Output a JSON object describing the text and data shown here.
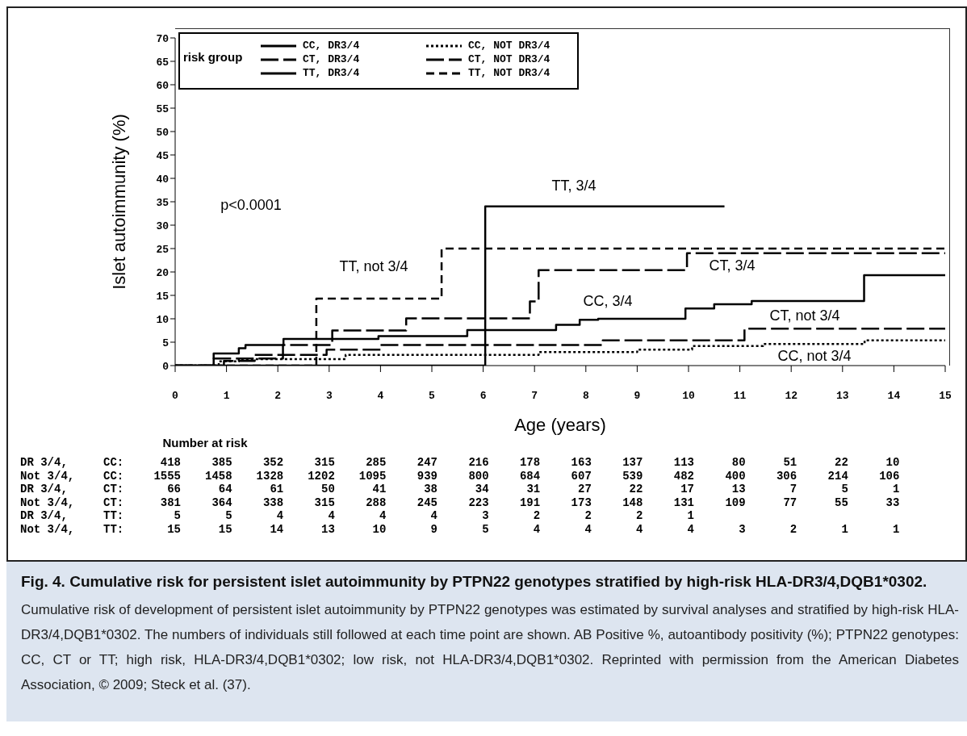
{
  "chart_data": {
    "type": "step",
    "title": "Fig. 4. Cumulative risk for persistent islet autoimmunity by PTPN22 genotypes stratified by high-risk HLA-DR3/4,DQB1*0302.",
    "xlabel": "Age (years)",
    "ylabel": "Islet autoimmunity (%)",
    "legend_title": "risk group",
    "legend": "top",
    "grid": false,
    "xlim": [
      0,
      15
    ],
    "xticks": [
      0,
      1,
      2,
      3,
      4,
      5,
      6,
      7,
      8,
      9,
      10,
      11,
      12,
      13,
      14,
      15
    ],
    "ylim": [
      0,
      70
    ],
    "yticks": [
      0,
      5,
      10,
      15,
      20,
      25,
      30,
      35,
      40,
      45,
      50,
      55,
      60,
      65,
      70
    ],
    "series": [
      {
        "name": "CC, DR3/4",
        "color": "#000000",
        "line_style": "solid",
        "x": [
          0,
          0.75,
          1.24,
          1.37,
          2.11,
          3.96,
          5.69,
          7.42,
          7.88,
          8.24,
          9.94,
          10.5,
          11.23,
          13.42,
          15
        ],
        "values": [
          0,
          2.6,
          3.7,
          4.4,
          5.7,
          6.3,
          7.6,
          8.7,
          9.8,
          10,
          12.2,
          13.1,
          13.8,
          19.3,
          19.3
        ]
      },
      {
        "name": "CT, DR3/4",
        "color": "#000000",
        "line_style": "dashed",
        "x": [
          0,
          0.75,
          2.1,
          3.06,
          4.5,
          6.91,
          7.08,
          9.97,
          15
        ],
        "values": [
          0,
          1.5,
          4.4,
          7.5,
          10.1,
          13.7,
          20.4,
          24,
          24
        ]
      },
      {
        "name": "TT, DR3/4",
        "color": "#000000",
        "line_style": "solid",
        "x": [
          0,
          6.04,
          10.7
        ],
        "values": [
          0,
          34,
          34
        ]
      },
      {
        "name": "CC, NOT DR3/4",
        "color": "#000000",
        "line_style": "dotted",
        "x": [
          0,
          0.85,
          1.24,
          3.32,
          7.08,
          9.0,
          10.07,
          11.45,
          13.43,
          15
        ],
        "values": [
          0,
          0.9,
          1.4,
          2.3,
          2.9,
          3.4,
          4.2,
          4.6,
          5.4,
          5.4
        ]
      },
      {
        "name": "CT, NOT DR3/4",
        "color": "#000000",
        "line_style": "dashed",
        "x": [
          0,
          0.95,
          1.55,
          2.95,
          4.0,
          8.33,
          11.09,
          15
        ],
        "values": [
          0,
          1.0,
          2.3,
          3.4,
          4.4,
          5.4,
          7.9,
          7.9
        ]
      },
      {
        "name": "TT, NOT DR3/4",
        "color": "#000000",
        "line_style": "dashed",
        "x": [
          0,
          2.75,
          5.19,
          15
        ],
        "values": [
          0,
          14.3,
          25,
          25
        ]
      }
    ],
    "annotations": [
      "p<0.0001",
      "TT, 3/4",
      "TT, not 3/4",
      "CT, 3/4",
      "CC, 3/4",
      "CT, not 3/4",
      "CC, not 3/4",
      "Number at risk",
      "DR 3/4, CC: 418 385 352 315 285 247 216 178 163 137 113 80 51 22 10",
      "Not 3/4, CC: 1555 1458 1328 1202 1095 939 800 684 607 539 482 400 306 214 106",
      "DR 3/4, CT: 66 64 61 50 41 38 34 31 27 22 17 13 7 5 1",
      "Not 3/4, CT: 381 364 338 315 288 245 223 191 173 148 131 109 77 55 33",
      "DR 3/4, TT: 5 5 4 4 4 4 3 2 2 2 1",
      "Not 3/4, TT: 15 15 14 13 10 9 5 4 4 4 4 3 2 1 1",
      "Cumulative risk of development of persistent islet autoimmunity by PTPN22 genotypes was estimated by survival analyses and stratified by high-risk HLA-DR3/4,DQB1*0302. The numbers of individuals still followed at each time point are shown. AB Positive %, autoantibody positivity (%); PTPN22 genotypes: CC, CT or TT; high risk, HLA-DR3/4,DQB1*0302; low risk, not HLA-DR3/4,DQB1*0302. Reprinted with permission from the American Diabetes Association, © 2009; Steck et al. (37)."
    ]
  }
}
